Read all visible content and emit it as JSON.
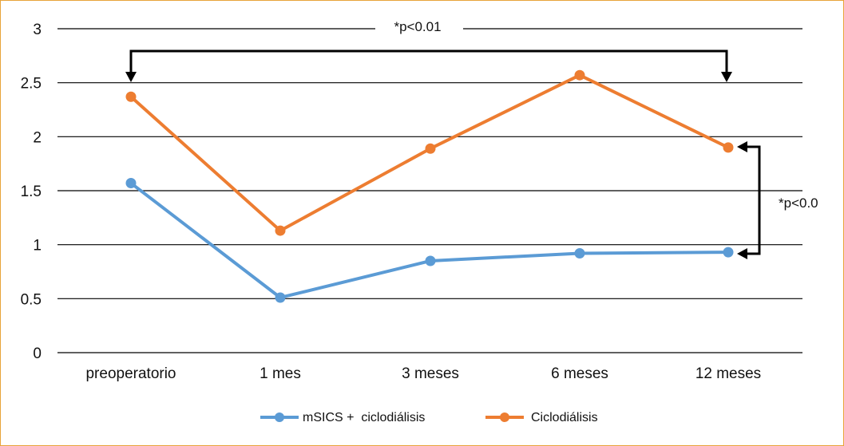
{
  "chart_data": {
    "type": "line",
    "categories": [
      "preoperatorio",
      "1 mes",
      "3 meses",
      "6 meses",
      "12 meses"
    ],
    "y_ticks": [
      "0",
      "0.5",
      "1",
      "1.5",
      "2",
      "2.5",
      "3"
    ],
    "ylim": [
      0,
      3
    ],
    "grid": true,
    "series": [
      {
        "name": "mSICS +  ciclodiálisis",
        "color": "#5b9bd5",
        "values": [
          1.57,
          0.51,
          0.85,
          0.92,
          0.93
        ]
      },
      {
        "name": "Ciclodiálisis",
        "color": "#ed7d31",
        "values": [
          2.37,
          1.13,
          1.89,
          2.57,
          1.9
        ]
      }
    ],
    "annotations": [
      {
        "text": "*p<0.01",
        "from": "preoperatorio",
        "to": "12 meses",
        "series": "Ciclodiálisis"
      },
      {
        "text": "*p<0.0",
        "from": "Ciclodiálisis",
        "to": "mSICS +  ciclodiálisis",
        "at": "12 meses"
      }
    ],
    "legend_position": "bottom"
  }
}
